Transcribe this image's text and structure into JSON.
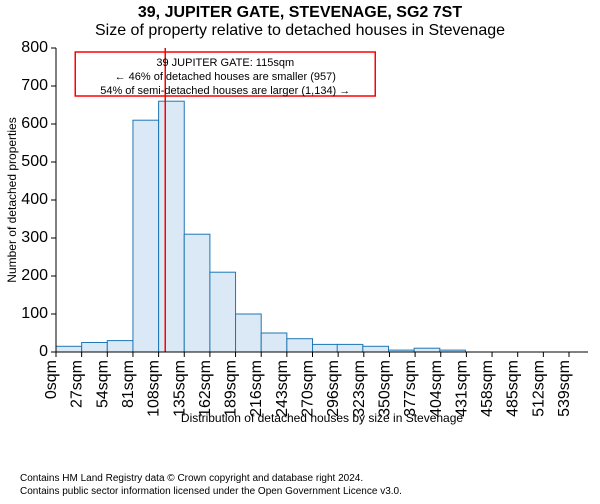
{
  "titles": {
    "line1": "39, JUPITER GATE, STEVENAGE, SG2 7ST",
    "line2": "Size of property relative to detached houses in Stevenage",
    "fontsize_line1": 13,
    "fontsize_line2": 13
  },
  "chart": {
    "type": "histogram",
    "xlabel": "Distribution of detached houses by size in Stevenage",
    "ylabel": "Number of detached properties",
    "label_fontsize": 12,
    "xlim": [
      0,
      560
    ],
    "ylim": [
      0,
      800
    ],
    "ytick_step": 100,
    "xtick_step": 27,
    "xtick_labels": [
      "0sqm",
      "27sqm",
      "54sqm",
      "81sqm",
      "108sqm",
      "135sqm",
      "162sqm",
      "189sqm",
      "216sqm",
      "243sqm",
      "270sqm",
      "296sqm",
      "323sqm",
      "350sqm",
      "377sqm",
      "404sqm",
      "431sqm",
      "458sqm",
      "485sqm",
      "512sqm",
      "539sqm"
    ],
    "bin_width": 27,
    "bins": [
      {
        "x": 0,
        "count": 15
      },
      {
        "x": 27,
        "count": 25
      },
      {
        "x": 54,
        "count": 30
      },
      {
        "x": 81,
        "count": 610
      },
      {
        "x": 108,
        "count": 660
      },
      {
        "x": 135,
        "count": 310
      },
      {
        "x": 162,
        "count": 210
      },
      {
        "x": 189,
        "count": 100
      },
      {
        "x": 216,
        "count": 50
      },
      {
        "x": 243,
        "count": 35
      },
      {
        "x": 270,
        "count": 20
      },
      {
        "x": 296,
        "count": 20
      },
      {
        "x": 323,
        "count": 15
      },
      {
        "x": 350,
        "count": 5
      },
      {
        "x": 377,
        "count": 10
      },
      {
        "x": 404,
        "count": 5
      },
      {
        "x": 431,
        "count": 0
      },
      {
        "x": 458,
        "count": 0
      },
      {
        "x": 485,
        "count": 0
      },
      {
        "x": 512,
        "count": 0
      },
      {
        "x": 539,
        "count": 0
      }
    ],
    "bar_fill": "#dbe9f6",
    "bar_stroke": "#1f77b4",
    "axis_color": "#000000",
    "background_color": "#ffffff",
    "marker_line": {
      "x": 115,
      "color": "#ff0000",
      "width": 1.5
    },
    "annotation": {
      "box_stroke": "#ff0000",
      "lines": [
        "39 JUPITER GATE: 115sqm",
        "← 46% of detached houses are smaller (957)",
        "54% of semi-detached houses are larger (1,134) →"
      ]
    }
  },
  "footer": {
    "line1": "Contains HM Land Registry data © Crown copyright and database right 2024.",
    "line2": "Contains public sector information licensed under the Open Government Licence v3.0."
  }
}
